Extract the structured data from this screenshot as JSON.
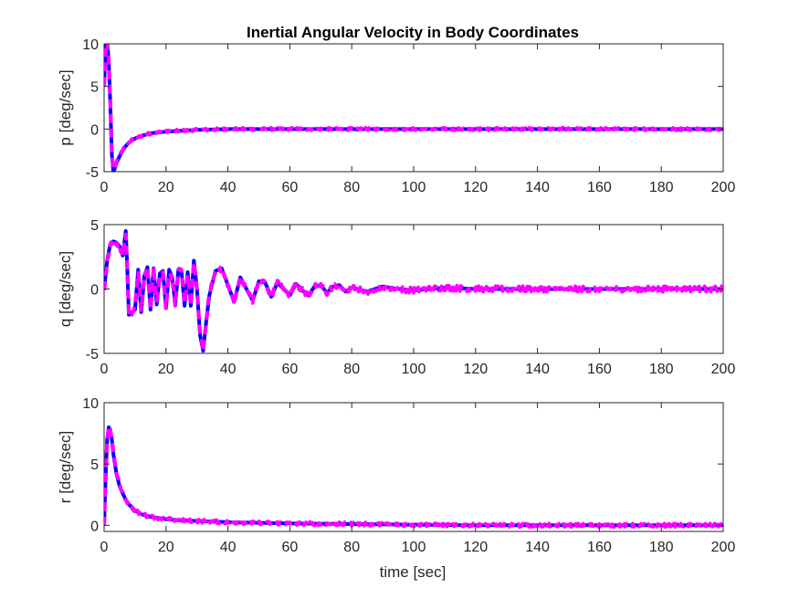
{
  "figure": {
    "title": "Inertial Angular Velocity in Body Coordinates",
    "xlabel": "time [sec]"
  },
  "colors": {
    "series_solid": "#0000ff",
    "series_dashed": "#ff00ff",
    "axes": "#262626"
  },
  "chart_data": [
    {
      "type": "line",
      "ylabel": "p [deg/sec]",
      "xlim": [
        0,
        200
      ],
      "ylim": [
        -5,
        10
      ],
      "xticks": [
        0,
        20,
        40,
        60,
        80,
        100,
        120,
        140,
        160,
        180,
        200
      ],
      "yticks": [
        -5,
        0,
        5,
        10
      ],
      "grid": false,
      "series": [
        {
          "style": "solid",
          "color": "#0000ff",
          "x": [
            0,
            0.5,
            1,
            1.5,
            2,
            2.5,
            3,
            3.5,
            4,
            5,
            6,
            7,
            8,
            10,
            12,
            15,
            20,
            30,
            40,
            60,
            80,
            100,
            120,
            140,
            160,
            180,
            200
          ],
          "y": [
            5,
            9.5,
            10.3,
            8,
            3,
            -3,
            -5,
            -4.6,
            -4,
            -3.2,
            -2.5,
            -2,
            -1.6,
            -1.1,
            -0.8,
            -0.5,
            -0.3,
            -0.1,
            0,
            0,
            0,
            0,
            0,
            0,
            0,
            0,
            0
          ]
        },
        {
          "style": "dashed",
          "color": "#ff00ff",
          "x": [
            0,
            0.5,
            1,
            1.5,
            2,
            2.5,
            3,
            3.5,
            4,
            5,
            6,
            7,
            8,
            10,
            12,
            15,
            20,
            30,
            40,
            60,
            80,
            100,
            120,
            140,
            160,
            180,
            200
          ],
          "y": [
            5,
            9.3,
            10.2,
            8.2,
            3.2,
            -2.8,
            -4.8,
            -4.5,
            -3.9,
            -3.1,
            -2.4,
            -1.9,
            -1.5,
            -1.1,
            -0.8,
            -0.5,
            -0.3,
            -0.1,
            0,
            0,
            0,
            0,
            0,
            0,
            0,
            0,
            0
          ],
          "noise": 0.15
        }
      ]
    },
    {
      "type": "line",
      "ylabel": "q [deg/sec]",
      "xlim": [
        0,
        200
      ],
      "ylim": [
        -5,
        5
      ],
      "xticks": [
        0,
        20,
        40,
        60,
        80,
        100,
        120,
        140,
        160,
        180,
        200
      ],
      "yticks": [
        -5,
        0,
        5
      ],
      "grid": false,
      "series": [
        {
          "style": "solid",
          "color": "#0000ff",
          "x": [
            0,
            1,
            2,
            3,
            4,
            5,
            6,
            7,
            7.5,
            8,
            9,
            10,
            11,
            12,
            13,
            14,
            15,
            16,
            17,
            18,
            19,
            20,
            21,
            22,
            23,
            24,
            25,
            26,
            27,
            28,
            29,
            30,
            31,
            32,
            33,
            34,
            35,
            36,
            38,
            40,
            42,
            44,
            46,
            48,
            50,
            52,
            54,
            56,
            58,
            60,
            62,
            64,
            66,
            68,
            70,
            72,
            74,
            76,
            78,
            80,
            85,
            90,
            95,
            100,
            110,
            120,
            140,
            160,
            180,
            200
          ],
          "y": [
            0,
            2.2,
            3.5,
            3.7,
            3.6,
            3.3,
            2.6,
            4.5,
            1.5,
            -2,
            -1.8,
            -1.6,
            1.5,
            -1.8,
            1,
            1.7,
            -1.6,
            1.6,
            -1.2,
            1.2,
            1.4,
            -1.5,
            1.5,
            0.9,
            -1.2,
            1.5,
            1.4,
            -1.3,
            1.3,
            -1.3,
            2.2,
            0,
            -3.6,
            -4.8,
            -2.5,
            -0.5,
            0.5,
            1.4,
            1.6,
            0.3,
            -1,
            0.9,
            0,
            -0.9,
            0.6,
            0.5,
            -0.6,
            0.5,
            0,
            -0.5,
            0.4,
            -0.1,
            -0.5,
            0.2,
            0.3,
            -0.3,
            0.2,
            0.3,
            -0.2,
            0.1,
            -0.2,
            0.2,
            0,
            -0.1,
            0.1,
            0,
            0,
            0,
            0,
            0
          ]
        },
        {
          "style": "dashed",
          "color": "#ff00ff",
          "x": [
            0,
            1,
            2,
            3,
            4,
            5,
            6,
            7,
            7.5,
            8,
            9,
            10,
            11,
            12,
            13,
            14,
            15,
            16,
            17,
            18,
            19,
            20,
            21,
            22,
            23,
            24,
            25,
            26,
            27,
            28,
            29,
            30,
            31,
            32,
            33,
            34,
            35,
            36,
            38,
            40,
            42,
            44,
            46,
            48,
            50,
            52,
            54,
            56,
            58,
            60,
            62,
            64,
            66,
            68,
            70,
            72,
            74,
            76,
            78,
            80,
            85,
            90,
            95,
            100,
            110,
            120,
            140,
            160,
            180,
            200
          ],
          "y": [
            0,
            2.1,
            3.4,
            3.7,
            3.6,
            3.2,
            2.6,
            4.2,
            1.4,
            -1.9,
            -1.8,
            -1.5,
            1.4,
            -1.7,
            1,
            1.6,
            -1.5,
            1.6,
            -1.1,
            1.1,
            1.3,
            -1.4,
            1.4,
            0.8,
            -1.1,
            1.4,
            1.3,
            -1.2,
            1.2,
            -1.2,
            2,
            0,
            -3.5,
            -4.7,
            -2.4,
            -0.5,
            0.5,
            1.3,
            1.5,
            0.3,
            -1,
            0.9,
            0,
            -0.9,
            0.6,
            0.5,
            -0.6,
            0.5,
            0,
            -0.5,
            0.4,
            -0.1,
            -0.5,
            0.2,
            0.3,
            -0.3,
            0.2,
            0.3,
            -0.2,
            0.1,
            -0.2,
            0.2,
            0,
            -0.1,
            0.1,
            0,
            0,
            0,
            0,
            0
          ],
          "noise": 0.22
        }
      ]
    },
    {
      "type": "line",
      "ylabel": "r [deg/sec]",
      "xlim": [
        0,
        200
      ],
      "ylim": [
        -0.5,
        10
      ],
      "xticks": [
        0,
        20,
        40,
        60,
        80,
        100,
        120,
        140,
        160,
        180,
        200
      ],
      "yticks": [
        0,
        5,
        10
      ],
      "grid": false,
      "series": [
        {
          "style": "solid",
          "color": "#0000ff",
          "x": [
            0,
            0.5,
            1,
            1.5,
            2,
            2.5,
            3,
            4,
            5,
            6,
            7,
            8,
            10,
            12,
            15,
            20,
            25,
            30,
            40,
            60,
            80,
            100,
            120,
            140,
            160,
            180,
            200
          ],
          "y": [
            0,
            4,
            7,
            8,
            7.8,
            7,
            5.8,
            4.2,
            3.2,
            2.6,
            2.1,
            1.7,
            1.2,
            0.9,
            0.7,
            0.5,
            0.4,
            0.35,
            0.25,
            0.15,
            0.1,
            0.05,
            0,
            0,
            0,
            0,
            0
          ]
        },
        {
          "style": "dashed",
          "color": "#ff00ff",
          "x": [
            0,
            0.5,
            1,
            1.5,
            2,
            2.5,
            3,
            4,
            5,
            6,
            7,
            8,
            10,
            12,
            15,
            20,
            25,
            30,
            40,
            60,
            80,
            100,
            120,
            140,
            160,
            180,
            200
          ],
          "y": [
            0,
            3.8,
            6.9,
            8,
            7.9,
            7.1,
            5.9,
            4.3,
            3.3,
            2.6,
            2.1,
            1.7,
            1.2,
            0.9,
            0.7,
            0.5,
            0.4,
            0.35,
            0.25,
            0.15,
            0.1,
            0.05,
            0,
            0,
            0,
            0,
            0
          ],
          "noise": 0.14
        }
      ]
    }
  ]
}
